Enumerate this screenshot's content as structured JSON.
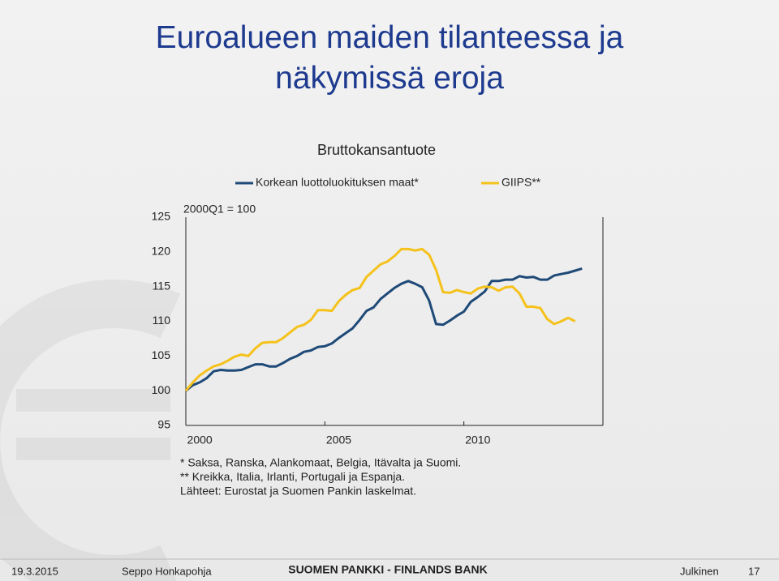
{
  "header": {
    "title": "Euroalueen maiden tilanteessa ja näkymissä eroja"
  },
  "chart_data": {
    "type": "line",
    "title": "Bruttokansantuote",
    "annotation": "2000Q1 = 100",
    "x": [
      2000,
      2000.25,
      2000.5,
      2000.75,
      2001,
      2001.25,
      2001.5,
      2001.75,
      2002,
      2002.25,
      2002.5,
      2002.75,
      2003,
      2003.25,
      2003.5,
      2003.75,
      2004,
      2004.25,
      2004.5,
      2004.75,
      2005,
      2005.25,
      2005.5,
      2005.75,
      2006,
      2006.25,
      2006.5,
      2006.75,
      2007,
      2007.25,
      2007.5,
      2007.75,
      2008,
      2008.25,
      2008.5,
      2008.75,
      2009,
      2009.25,
      2009.5,
      2009.75,
      2010,
      2010.25,
      2010.5,
      2010.75,
      2011,
      2011.25,
      2011.5,
      2011.75,
      2012,
      2012.25,
      2012.5,
      2012.75,
      2013,
      2013.25,
      2013.5,
      2013.75,
      2014,
      2014.25
    ],
    "series": [
      {
        "name": "Korkean luottoluokituksen maat*",
        "color": "#1f4a78",
        "values": [
          100,
          100.8,
          101.2,
          101.8,
          102.8,
          103.0,
          102.9,
          102.9,
          103.0,
          103.4,
          103.8,
          103.8,
          103.5,
          103.5,
          104.0,
          104.6,
          105.0,
          105.6,
          105.8,
          106.3,
          106.4,
          106.8,
          107.6,
          108.3,
          109.0,
          110.2,
          111.5,
          112.0,
          113.2,
          114.0,
          114.8,
          115.4,
          115.8,
          115.4,
          114.9,
          113.0,
          109.6,
          109.5,
          110.1,
          110.8,
          111.4,
          112.8,
          113.5,
          114.3,
          115.8,
          115.8,
          116.0,
          116.0,
          116.5,
          116.3,
          116.4,
          116.0,
          116.0,
          116.6,
          116.8,
          117.0,
          117.3,
          117.6
        ]
      },
      {
        "name": "GIIPS**",
        "color": "#f5c21b",
        "values": [
          100,
          101.2,
          102.2,
          102.9,
          103.5,
          103.8,
          104.3,
          104.9,
          105.2,
          105.0,
          106.1,
          106.9,
          107.0,
          107.0,
          107.6,
          108.4,
          109.2,
          109.5,
          110.2,
          111.6,
          111.6,
          111.5,
          112.9,
          113.8,
          114.5,
          114.8,
          116.4,
          117.3,
          118.2,
          118.6,
          119.4,
          120.4,
          120.4,
          120.2,
          120.4,
          119.6,
          117.4,
          114.2,
          114.1,
          114.5,
          114.2,
          114.0,
          114.7,
          115.0,
          114.9,
          114.4,
          114.9,
          115.0,
          114.0,
          112.1,
          112.1,
          111.9,
          110.3,
          109.6,
          110.0,
          110.5,
          110.0,
          null
        ]
      }
    ],
    "xlim": [
      2000,
      2015
    ],
    "xticks": [
      2000,
      2005,
      2010
    ],
    "ylim": [
      95,
      125
    ],
    "yticks": [
      95,
      100,
      105,
      110,
      115,
      120,
      125
    ],
    "grid": false,
    "legend": "top",
    "notes": [
      "*  Saksa, Ranska, Alankomaat, Belgia, Itävalta ja Suomi.",
      "** Kreikka, Italia, Irlanti, Portugali ja Espanja.",
      "Lähteet: Eurostat ja Suomen Pankin laskelmat."
    ]
  },
  "footer": {
    "date": "19.3.2015",
    "author": "Seppo Honkapohja",
    "organization": "SUOMEN PANKKI - FINLANDS BANK",
    "classification": "Julkinen",
    "page": "17"
  }
}
